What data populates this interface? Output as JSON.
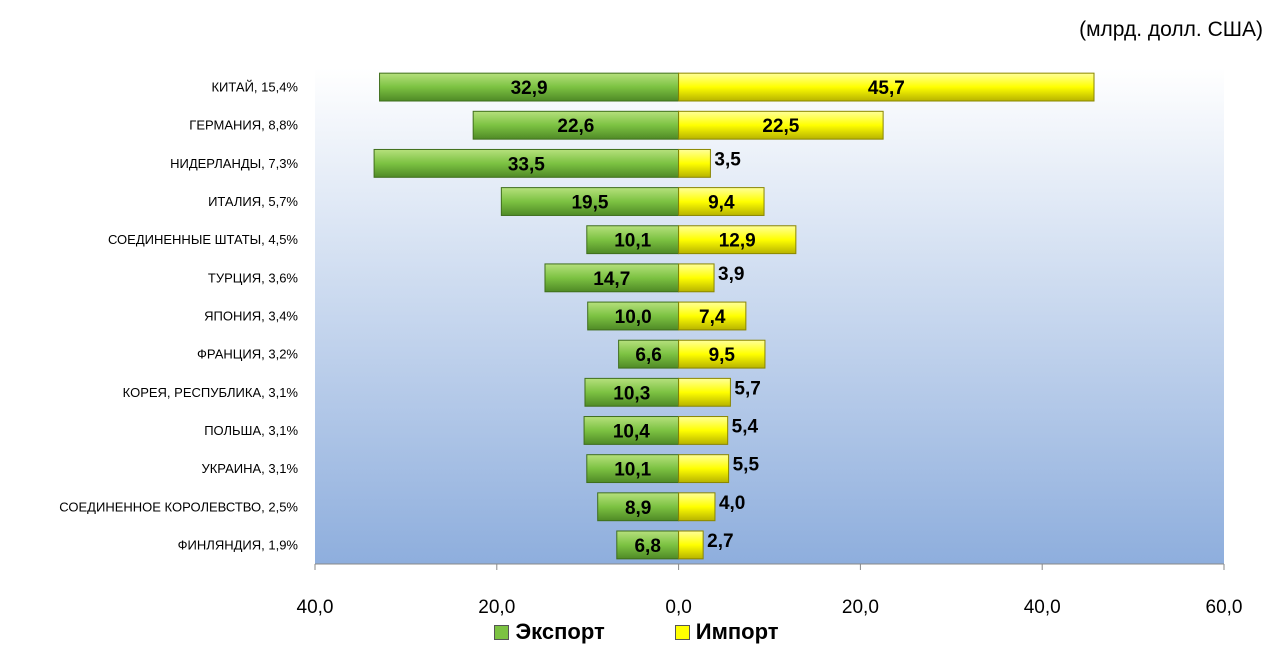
{
  "unit_label": "(млрд. долл. США)",
  "chart_data": {
    "type": "bar",
    "orientation": "horizontal-diverging",
    "categories": [
      "КИТАЙ, 15,4%",
      "ГЕРМАНИЯ, 8,8%",
      "НИДЕРЛАНДЫ, 7,3%",
      "ИТАЛИЯ, 5,7%",
      "СОЕДИНЕННЫЕ ШТАТЫ, 4,5%",
      "ТУРЦИЯ, 3,6%",
      "ЯПОНИЯ, 3,4%",
      "ФРАНЦИЯ, 3,2%",
      "КОРЕЯ, РЕСПУБЛИКА, 3,1%",
      "ПОЛЬША, 3,1%",
      "УКРАИНА, 3,1%",
      "СОЕДИНЕННОЕ КОРОЛЕВСТВО, 2,5%",
      "ФИНЛЯНДИЯ, 1,9%"
    ],
    "series": [
      {
        "name": "Экспорт",
        "direction": "left",
        "color": "#7cc242",
        "values": [
          32.9,
          22.6,
          33.5,
          19.5,
          10.1,
          14.7,
          10.0,
          6.6,
          10.3,
          10.4,
          10.1,
          8.9,
          6.8
        ],
        "labels": [
          "32,9",
          "22,6",
          "33,5",
          "19,5",
          "10,1",
          "14,7",
          "10,0",
          "6,6",
          "10,3",
          "10,4",
          "10,1",
          "8,9",
          "6,8"
        ]
      },
      {
        "name": "Импорт",
        "direction": "right",
        "color": "#ffff00",
        "values": [
          45.7,
          22.5,
          3.5,
          9.4,
          12.9,
          3.9,
          7.4,
          9.5,
          5.7,
          5.4,
          5.5,
          4.0,
          2.7
        ],
        "labels": [
          "45,7",
          "22,5",
          "3,5",
          "9,4",
          "12,9",
          "3,9",
          "7,4",
          "9,5",
          "5,7",
          "5,4",
          "5,5",
          "4,0",
          "2,7"
        ]
      }
    ],
    "xaxis": {
      "range": [
        -40,
        60
      ],
      "ticks": [
        -40,
        -20,
        0,
        20,
        40,
        60
      ],
      "tick_labels": [
        "40,0",
        "20,0",
        "0,0",
        "20,0",
        "40,0",
        "60,0"
      ]
    },
    "grid": false,
    "legend_position": "bottom",
    "title": "",
    "xlabel": "",
    "ylabel": ""
  }
}
